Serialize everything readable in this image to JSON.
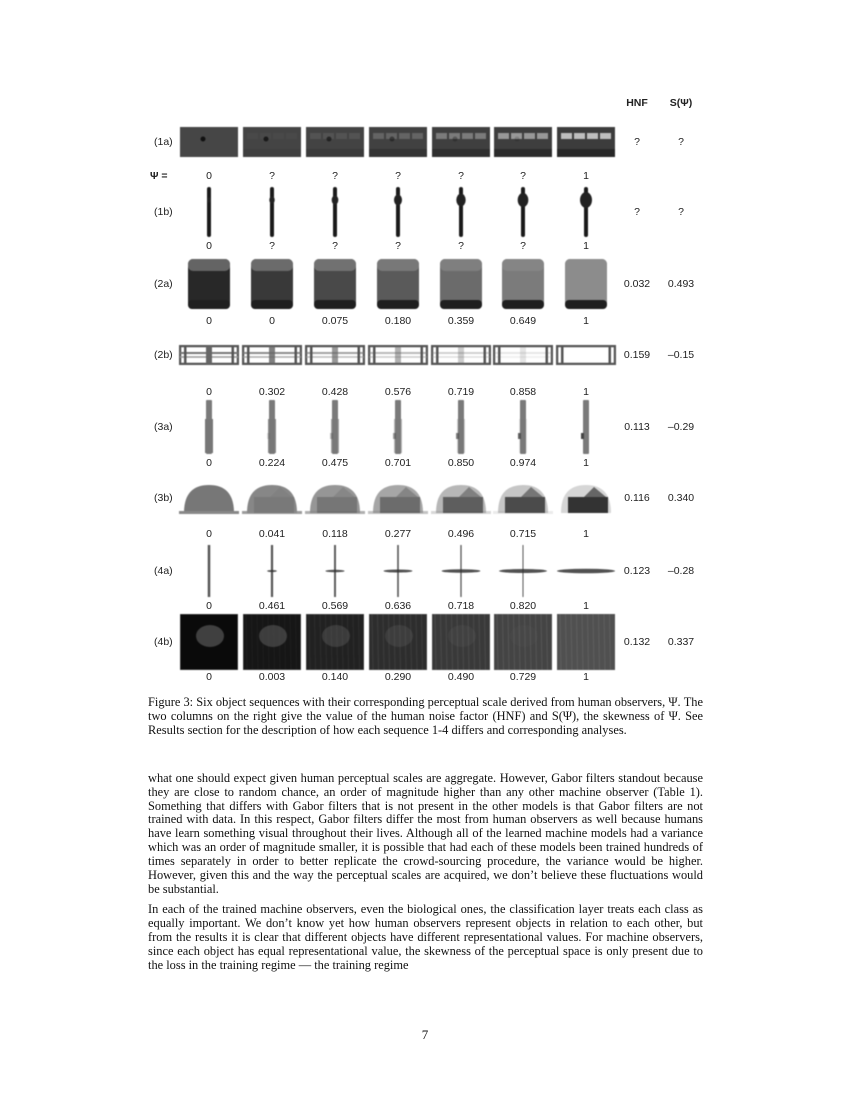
{
  "figure": {
    "header": {
      "hnf": "HNF",
      "skew": "S(Ψ)"
    },
    "psi_label": "Ψ =",
    "rows": [
      {
        "label": "(1a)",
        "object": "panel",
        "hnf": "?",
        "skew": "?",
        "values": [
          "0",
          "?",
          "?",
          "?",
          "?",
          "?",
          "1"
        ]
      },
      {
        "label": "(1b)",
        "object": "stick",
        "hnf": "?",
        "skew": "?",
        "values": [
          "0",
          "?",
          "?",
          "?",
          "?",
          "?",
          "1"
        ]
      },
      {
        "label": "(2a)",
        "object": "cylinder",
        "hnf": "0.032",
        "skew": "0.493",
        "values": [
          "0",
          "0",
          "0.075",
          "0.180",
          "0.359",
          "0.649",
          "1"
        ]
      },
      {
        "label": "(2b)",
        "object": "frame",
        "hnf": "0.159",
        "skew": "–0.15",
        "values": [
          "0",
          "0.302",
          "0.428",
          "0.576",
          "0.719",
          "0.858",
          "1"
        ]
      },
      {
        "label": "(3a)",
        "object": "rod",
        "hnf": "0.113",
        "skew": "–0.29",
        "values": [
          "0",
          "0.224",
          "0.475",
          "0.701",
          "0.850",
          "0.974",
          "1"
        ]
      },
      {
        "label": "(3b)",
        "object": "helmet",
        "hnf": "0.116",
        "skew": "0.340",
        "values": [
          "0",
          "0.041",
          "0.118",
          "0.277",
          "0.496",
          "0.715",
          "1"
        ]
      },
      {
        "label": "(4a)",
        "object": "cross",
        "hnf": "0.123",
        "skew": "–0.28",
        "values": [
          "0",
          "0.461",
          "0.569",
          "0.636",
          "0.718",
          "0.820",
          "1"
        ]
      },
      {
        "label": "(4b)",
        "object": "texture",
        "hnf": "0.132",
        "skew": "0.337",
        "values": [
          "0",
          "0.003",
          "0.140",
          "0.290",
          "0.490",
          "0.729",
          "1"
        ]
      }
    ]
  },
  "caption": "Figure 3: Six object sequences with their corresponding perceptual scale derived from human observers, Ψ. The two columns on the right give the value of the human noise factor (HNF) and S(Ψ), the skewness of Ψ. See Results section for the description of how each sequence 1-4 differs and corresponding analyses.",
  "paragraphs": [
    "what one should expect given human perceptual scales are aggregate. However, Gabor filters standout because they are close to random chance, an order of magnitude higher than any other machine observer (Table 1). Something that differs with Gabor filters that is not present in the other models is that Gabor filters are not trained with data. In this respect, Gabor filters differ the most from human observers as well because humans have learn something visual throughout their lives. Although all of the learned machine models had a variance which was an order of magnitude smaller, it is possible that had each of these models been trained hundreds of times separately in order to better replicate the crowd-sourcing procedure, the variance would be higher. However, given this and the way the perceptual scales are acquired, we don’t believe these fluctuations would be substantial.",
    "In each of the trained machine observers, even the biological ones, the classification layer treats each class as equally important. We don’t know yet how human observers represent objects in relation to each other, but from the results it is clear that different objects have different representational values. For machine observers, since each object has equal representational value, the skewness of the perceptual space is only present due to the loss in the training regime — the training regime"
  ],
  "page_number": "7"
}
